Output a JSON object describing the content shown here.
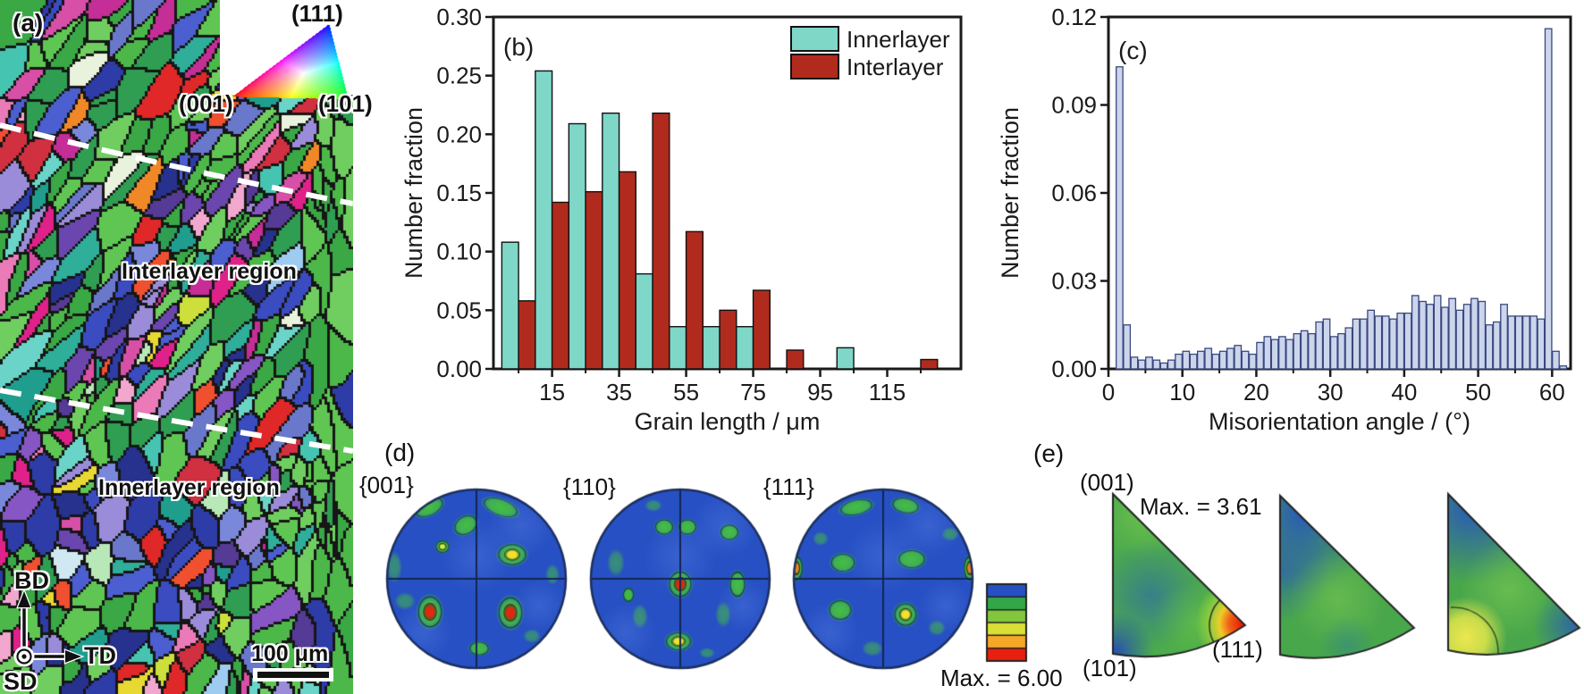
{
  "figure": {
    "panel_a": {
      "label": "(a)",
      "interlayer_label": "Interlayer region",
      "innerlayer_label": "Innerlayer region",
      "bd": "BD",
      "td": "TD",
      "sd": "SD",
      "scale_bar": "100 μm",
      "ipf_key": {
        "v111": "(111)",
        "v001": "(001)",
        "v101": "(101)"
      }
    },
    "panel_d": {
      "label": "(d)",
      "pf_labels": [
        "{001}",
        "{110}",
        "{111}"
      ],
      "max_label": "Max. = 6.00"
    },
    "panel_e": {
      "label": "(e)",
      "corner_top": "(001)",
      "corner_bl": "(101)",
      "corner_br": "(111)",
      "max_label": "Max. = 3.61"
    }
  },
  "colors": {
    "innerlayer": "#7fd7c8",
    "interlayer": "#b02b1d",
    "hist_fill": "#ccd5ec",
    "hist_edge": "#39497e",
    "axis": "#1a1a1a",
    "pole_disc": "#2750c4",
    "colorbar_bands": [
      "#2750c4",
      "#33a648",
      "#82c63e",
      "#d8e038",
      "#f5a828",
      "#e82010"
    ]
  },
  "map_palette": {
    "green": [
      "#3aa845",
      "#4db84a",
      "#5fc653",
      "#2f9e52",
      "#6fce5f"
    ],
    "blue": [
      "#2e3ca8",
      "#3a4cc0",
      "#27318e",
      "#4b5fd0"
    ],
    "periwinkle": [
      "#7a88dc",
      "#9a8cd8",
      "#6a78cc"
    ],
    "teal": [
      "#2fae9a",
      "#46c4b2",
      "#1f9e8e",
      "#6ad4c8"
    ],
    "purple": [
      "#6a46ae",
      "#8656c4",
      "#553a96"
    ],
    "magenta": [
      "#c42e96",
      "#e0218a",
      "#ea7ab8",
      "#f2a8ce",
      "#d84fa8"
    ],
    "red": [
      "#e02828",
      "#d03040",
      "#f05030"
    ],
    "warm": [
      "#f08828",
      "#e8d832",
      "#ccdf3a"
    ],
    "light": [
      "#cfe8f2",
      "#b8e8b8",
      "#e8f2dc",
      "#9eccf0"
    ]
  },
  "chart_data": [
    {
      "type": "bar",
      "panel_label": "(b)",
      "xlabel": "Grain length / μm",
      "ylabel": "Number fraction",
      "categories": [
        5,
        15,
        25,
        35,
        45,
        55,
        65,
        75,
        85,
        95,
        105,
        115,
        125
      ],
      "series": [
        {
          "name": "Innerlayer",
          "color": "#7fd7c8",
          "values": [
            0.108,
            0.254,
            0.209,
            0.218,
            0.081,
            0.036,
            0.036,
            0.036,
            0,
            0,
            0.018,
            0,
            0
          ]
        },
        {
          "name": "Interlayer",
          "color": "#b02b1d",
          "values": [
            0.058,
            0.142,
            0.151,
            0.168,
            0.218,
            0.117,
            0.05,
            0.067,
            0.016,
            0,
            0,
            0,
            0.008
          ]
        }
      ],
      "ylim": [
        0,
        0.3
      ],
      "xlim": [
        -2.5,
        137
      ],
      "yticks": [
        0,
        0.05,
        0.1,
        0.15,
        0.2,
        0.25,
        0.3
      ],
      "ytick_labels": [
        "0.00",
        "0.05",
        "0.10",
        "0.15",
        "0.20",
        "0.25",
        "0.30"
      ],
      "xticks": [
        15,
        35,
        55,
        75,
        95,
        115
      ],
      "xtick_labels": [
        "15",
        "35",
        "55",
        "75",
        "95",
        "115"
      ],
      "minor_xticks": [
        5,
        25,
        45,
        65,
        85,
        105,
        125
      ],
      "legend_position": "top-right",
      "grid": false
    },
    {
      "type": "bar",
      "panel_label": "(c)",
      "xlabel": "Misorientation angle / (°)",
      "ylabel": "Number fraction",
      "bin_width": 1,
      "x": [
        1.5,
        2.5,
        3.5,
        4.5,
        5.5,
        6.5,
        7.5,
        8.5,
        9.5,
        10.5,
        11.5,
        12.5,
        13.5,
        14.5,
        15.5,
        16.5,
        17.5,
        18.5,
        19.5,
        20.5,
        21.5,
        22.5,
        23.5,
        24.5,
        25.5,
        26.5,
        27.5,
        28.5,
        29.5,
        30.5,
        31.5,
        32.5,
        33.5,
        34.5,
        35.5,
        36.5,
        37.5,
        38.5,
        39.5,
        40.5,
        41.5,
        42.5,
        43.5,
        44.5,
        45.5,
        46.5,
        47.5,
        48.5,
        49.5,
        50.5,
        51.5,
        52.5,
        53.5,
        54.5,
        55.5,
        56.5,
        57.5,
        58.5,
        59.5,
        60.5,
        61.5
      ],
      "values": [
        0.103,
        0.015,
        0.004,
        0.003,
        0.004,
        0.003,
        0.002,
        0.003,
        0.005,
        0.006,
        0.005,
        0.006,
        0.007,
        0.005,
        0.006,
        0.007,
        0.008,
        0.006,
        0.005,
        0.009,
        0.011,
        0.01,
        0.011,
        0.01,
        0.012,
        0.013,
        0.012,
        0.016,
        0.017,
        0.011,
        0.012,
        0.014,
        0.017,
        0.017,
        0.02,
        0.018,
        0.018,
        0.017,
        0.019,
        0.019,
        0.025,
        0.023,
        0.022,
        0.025,
        0.021,
        0.024,
        0.02,
        0.022,
        0.024,
        0.023,
        0.015,
        0.016,
        0.022,
        0.018,
        0.018,
        0.018,
        0.018,
        0.017,
        0.116,
        0.006,
        0.001
      ],
      "ylim": [
        0,
        0.12
      ],
      "xlim": [
        0,
        62.5
      ],
      "yticks": [
        0,
        0.03,
        0.06,
        0.09,
        0.12
      ],
      "ytick_labels": [
        "0.00",
        "0.03",
        "0.06",
        "0.09",
        "0.12"
      ],
      "xticks": [
        0,
        10,
        20,
        30,
        40,
        50,
        60
      ],
      "xtick_labels": [
        "0",
        "10",
        "20",
        "30",
        "40",
        "50",
        "60"
      ],
      "minor_xticks": [
        5,
        15,
        25,
        35,
        45,
        55
      ],
      "grid": false
    }
  ]
}
